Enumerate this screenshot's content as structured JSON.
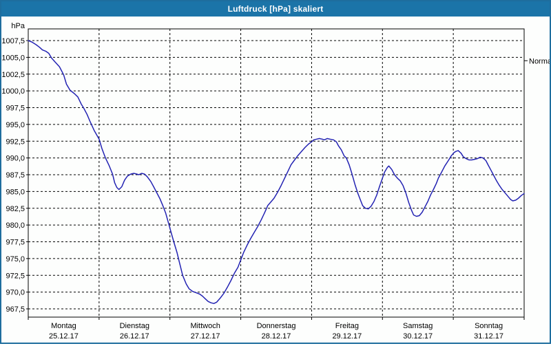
{
  "window": {
    "title": "Luftdruck [hPa] skaliert"
  },
  "colors": {
    "titlebar_bg": "#1b74a8",
    "window_border": "#1e6d9e",
    "plot_bg": "#fdfefd",
    "grid": "#000000",
    "curve": "#2222b2",
    "text": "#000000"
  },
  "chart_data": {
    "type": "line",
    "title": "Luftdruck [hPa] skaliert",
    "ylabel": "hPa",
    "y_unit_label": "hPa",
    "ylim": [
      967.5,
      1007.5
    ],
    "y_step": 2.5,
    "y_tick_labels": [
      "1007,5",
      "1005,0",
      "1002,5",
      "1000,0",
      "997,5",
      "995,0",
      "992,5",
      "990,0",
      "987,5",
      "985,0",
      "982,5",
      "980,0",
      "977,5",
      "975,0",
      "972,5",
      "970,0",
      "967,5"
    ],
    "y_tick_values": [
      1007.5,
      1005.0,
      1002.5,
      1000.0,
      997.5,
      995.0,
      992.5,
      990.0,
      987.5,
      985.0,
      982.5,
      980.0,
      977.5,
      975.0,
      972.5,
      970.0,
      967.5
    ],
    "grid": "dashed",
    "legend_position": "none",
    "right_annotation": {
      "label": "Normal",
      "value": 1004.5
    },
    "x_days": [
      {
        "name": "Montag",
        "date": "25.12.17"
      },
      {
        "name": "Dienstag",
        "date": "26.12.17"
      },
      {
        "name": "Mittwoch",
        "date": "27.12.17"
      },
      {
        "name": "Donnerstag",
        "date": "28.12.17"
      },
      {
        "name": "Freitag",
        "date": "29.12.17"
      },
      {
        "name": "Samstag",
        "date": "30.12.17"
      },
      {
        "name": "Sonntag",
        "date": "31.12.17"
      }
    ],
    "x_domain_days": [
      0,
      7
    ],
    "series": [
      {
        "name": "Luftdruck",
        "unit": "hPa",
        "color": "#2222b2",
        "points": [
          [
            0.0,
            1007.5
          ],
          [
            0.05,
            1007.3
          ],
          [
            0.11,
            1006.9
          ],
          [
            0.16,
            1006.5
          ],
          [
            0.2,
            1006.1
          ],
          [
            0.25,
            1005.9
          ],
          [
            0.29,
            1005.6
          ],
          [
            0.33,
            1004.9
          ],
          [
            0.38,
            1004.3
          ],
          [
            0.44,
            1003.6
          ],
          [
            0.5,
            1002.4
          ],
          [
            0.54,
            1001.0
          ],
          [
            0.59,
            1000.1
          ],
          [
            0.65,
            999.6
          ],
          [
            0.7,
            999.1
          ],
          [
            0.75,
            998.0
          ],
          [
            0.78,
            997.5
          ],
          [
            0.83,
            996.5
          ],
          [
            0.87,
            995.5
          ],
          [
            0.93,
            994.1
          ],
          [
            1.0,
            992.8
          ],
          [
            1.04,
            991.4
          ],
          [
            1.09,
            990.0
          ],
          [
            1.14,
            988.9
          ],
          [
            1.19,
            987.6
          ],
          [
            1.22,
            986.3
          ],
          [
            1.25,
            985.6
          ],
          [
            1.28,
            985.3
          ],
          [
            1.32,
            985.7
          ],
          [
            1.36,
            986.7
          ],
          [
            1.4,
            987.3
          ],
          [
            1.45,
            987.6
          ],
          [
            1.49,
            987.7
          ],
          [
            1.53,
            987.6
          ],
          [
            1.56,
            987.5
          ],
          [
            1.6,
            987.7
          ],
          [
            1.64,
            987.6
          ],
          [
            1.68,
            987.2
          ],
          [
            1.73,
            986.5
          ],
          [
            1.77,
            985.7
          ],
          [
            1.81,
            984.9
          ],
          [
            1.86,
            983.9
          ],
          [
            1.9,
            982.9
          ],
          [
            1.94,
            981.8
          ],
          [
            1.99,
            979.9
          ],
          [
            2.03,
            978.4
          ],
          [
            2.06,
            977.3
          ],
          [
            2.1,
            975.9
          ],
          [
            2.13,
            974.6
          ],
          [
            2.18,
            972.5
          ],
          [
            2.23,
            971.2
          ],
          [
            2.27,
            970.5
          ],
          [
            2.32,
            970.1
          ],
          [
            2.37,
            969.9
          ],
          [
            2.42,
            969.7
          ],
          [
            2.46,
            969.4
          ],
          [
            2.5,
            969.0
          ],
          [
            2.54,
            968.6
          ],
          [
            2.58,
            968.4
          ],
          [
            2.62,
            968.3
          ],
          [
            2.66,
            968.5
          ],
          [
            2.71,
            969.1
          ],
          [
            2.76,
            969.8
          ],
          [
            2.81,
            970.7
          ],
          [
            2.86,
            971.7
          ],
          [
            2.91,
            972.8
          ],
          [
            2.96,
            973.7
          ],
          [
            3.0,
            974.8
          ],
          [
            3.04,
            975.9
          ],
          [
            3.09,
            977.0
          ],
          [
            3.14,
            978.0
          ],
          [
            3.19,
            978.9
          ],
          [
            3.24,
            979.8
          ],
          [
            3.29,
            980.8
          ],
          [
            3.34,
            981.9
          ],
          [
            3.38,
            982.9
          ],
          [
            3.43,
            983.5
          ],
          [
            3.47,
            984.0
          ],
          [
            3.52,
            984.9
          ],
          [
            3.57,
            985.9
          ],
          [
            3.62,
            987.0
          ],
          [
            3.67,
            988.1
          ],
          [
            3.71,
            989.0
          ],
          [
            3.76,
            989.7
          ],
          [
            3.81,
            990.4
          ],
          [
            3.86,
            991.0
          ],
          [
            3.91,
            991.6
          ],
          [
            3.96,
            992.1
          ],
          [
            4.0,
            992.4
          ],
          [
            4.03,
            992.7
          ],
          [
            4.07,
            992.8
          ],
          [
            4.11,
            992.9
          ],
          [
            4.15,
            992.8
          ],
          [
            4.18,
            992.7
          ],
          [
            4.22,
            992.9
          ],
          [
            4.26,
            992.8
          ],
          [
            4.31,
            992.7
          ],
          [
            4.35,
            992.4
          ],
          [
            4.38,
            991.8
          ],
          [
            4.42,
            991.2
          ],
          [
            4.46,
            990.3
          ],
          [
            4.49,
            990.0
          ],
          [
            4.53,
            989.0
          ],
          [
            4.57,
            987.6
          ],
          [
            4.61,
            986.1
          ],
          [
            4.65,
            984.8
          ],
          [
            4.69,
            983.7
          ],
          [
            4.72,
            982.9
          ],
          [
            4.76,
            982.5
          ],
          [
            4.8,
            982.4
          ],
          [
            4.84,
            982.8
          ],
          [
            4.88,
            983.5
          ],
          [
            4.92,
            984.5
          ],
          [
            4.96,
            985.8
          ],
          [
            5.0,
            987.0
          ],
          [
            5.03,
            987.9
          ],
          [
            5.07,
            988.6
          ],
          [
            5.09,
            988.8
          ],
          [
            5.13,
            988.3
          ],
          [
            5.17,
            987.5
          ],
          [
            5.21,
            987.0
          ],
          [
            5.25,
            986.6
          ],
          [
            5.29,
            985.9
          ],
          [
            5.33,
            984.8
          ],
          [
            5.37,
            983.4
          ],
          [
            5.41,
            982.2
          ],
          [
            5.44,
            981.5
          ],
          [
            5.48,
            981.3
          ],
          [
            5.52,
            981.4
          ],
          [
            5.56,
            981.9
          ],
          [
            5.6,
            982.7
          ],
          [
            5.64,
            983.5
          ],
          [
            5.68,
            984.5
          ],
          [
            5.72,
            985.3
          ],
          [
            5.76,
            986.2
          ],
          [
            5.79,
            987.0
          ],
          [
            5.83,
            987.8
          ],
          [
            5.88,
            988.8
          ],
          [
            5.93,
            989.6
          ],
          [
            5.97,
            990.3
          ],
          [
            6.01,
            990.8
          ],
          [
            6.04,
            991.0
          ],
          [
            6.07,
            991.1
          ],
          [
            6.11,
            990.7
          ],
          [
            6.14,
            990.2
          ],
          [
            6.18,
            989.9
          ],
          [
            6.22,
            989.7
          ],
          [
            6.26,
            989.7
          ],
          [
            6.3,
            989.8
          ],
          [
            6.34,
            989.9
          ],
          [
            6.38,
            990.1
          ],
          [
            6.42,
            990.0
          ],
          [
            6.46,
            989.6
          ],
          [
            6.49,
            989.0
          ],
          [
            6.53,
            988.2
          ],
          [
            6.57,
            987.4
          ],
          [
            6.61,
            986.6
          ],
          [
            6.65,
            985.9
          ],
          [
            6.69,
            985.3
          ],
          [
            6.73,
            984.8
          ],
          [
            6.77,
            984.3
          ],
          [
            6.81,
            983.8
          ],
          [
            6.84,
            983.6
          ],
          [
            6.88,
            983.7
          ],
          [
            6.92,
            984.0
          ],
          [
            6.96,
            984.4
          ],
          [
            7.0,
            984.7
          ]
        ]
      }
    ]
  }
}
